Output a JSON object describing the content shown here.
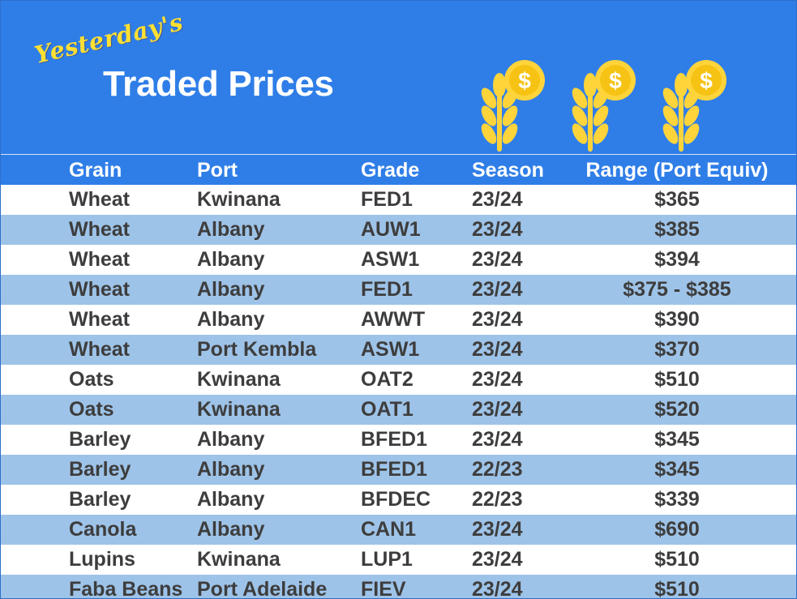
{
  "banner": {
    "title_script": "Yesterday's",
    "title_main": "Traded Prices",
    "icons": [
      "wheat-coin-icon",
      "wheat-coin-icon",
      "wheat-coin-icon"
    ],
    "colors": {
      "background": "#2f7ee8",
      "script": "#ffe033",
      "main": "#ffffff",
      "icon": "#ffd43b"
    }
  },
  "table": {
    "headers": {
      "grain": "Grain",
      "port": "Port",
      "grade": "Grade",
      "season": "Season",
      "range": "Range (Port Equiv)"
    },
    "rows": [
      {
        "grain": "Wheat",
        "port": "Kwinana",
        "grade": "FED1",
        "season": "23/24",
        "range": "$365"
      },
      {
        "grain": "Wheat",
        "port": "Albany",
        "grade": "AUW1",
        "season": "23/24",
        "range": "$385"
      },
      {
        "grain": "Wheat",
        "port": "Albany",
        "grade": "ASW1",
        "season": "23/24",
        "range": "$394"
      },
      {
        "grain": "Wheat",
        "port": "Albany",
        "grade": "FED1",
        "season": "23/24",
        "range": "$375 - $385"
      },
      {
        "grain": "Wheat",
        "port": "Albany",
        "grade": "AWWT",
        "season": "23/24",
        "range": "$390"
      },
      {
        "grain": "Wheat",
        "port": "Port Kembla",
        "grade": "ASW1",
        "season": "23/24",
        "range": "$370"
      },
      {
        "grain": "Oats",
        "port": "Kwinana",
        "grade": "OAT2",
        "season": "23/24",
        "range": "$510"
      },
      {
        "grain": "Oats",
        "port": "Kwinana",
        "grade": "OAT1",
        "season": "23/24",
        "range": "$520"
      },
      {
        "grain": "Barley",
        "port": "Albany",
        "grade": "BFED1",
        "season": "23/24",
        "range": "$345"
      },
      {
        "grain": "Barley",
        "port": "Albany",
        "grade": "BFED1",
        "season": "22/23",
        "range": "$345"
      },
      {
        "grain": "Barley",
        "port": "Albany",
        "grade": "BFDEC",
        "season": "22/23",
        "range": "$339"
      },
      {
        "grain": "Canola",
        "port": "Albany",
        "grade": "CAN1",
        "season": "23/24",
        "range": "$690"
      },
      {
        "grain": "Lupins",
        "port": "Kwinana",
        "grade": "LUP1",
        "season": "23/24",
        "range": "$510"
      },
      {
        "grain": "Faba Beans",
        "port": "Port Adelaide",
        "grade": "FIEV",
        "season": "23/24",
        "range": "$510"
      }
    ],
    "colors": {
      "header": "#2f7ee8",
      "stripe": "#9ec3e8",
      "text": "#3d3d3d"
    }
  }
}
